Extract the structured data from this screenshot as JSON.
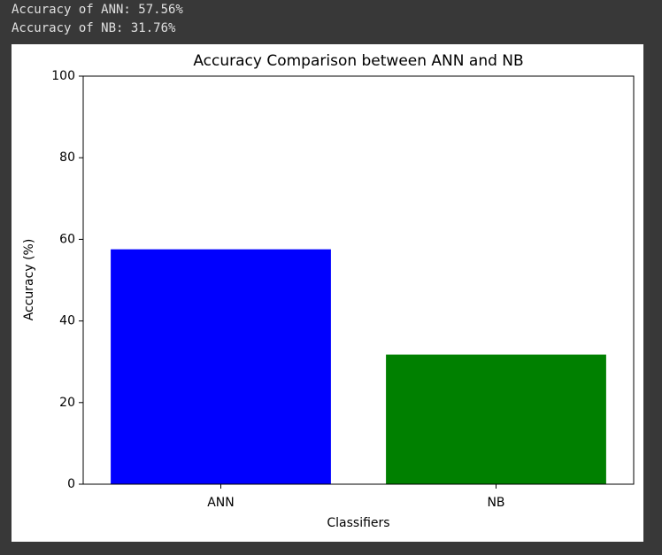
{
  "output": [
    "Accuracy of ANN: 57.56%",
    "Accuracy of NB: 31.76%"
  ],
  "chart_data": {
    "type": "bar",
    "title": "Accuracy Comparison between ANN and NB",
    "x_label": "Classifiers",
    "y_label": "Accuracy (%)",
    "categories": [
      "ANN",
      "NB"
    ],
    "values": [
      57.56,
      31.76
    ],
    "colors": [
      "#0000ff",
      "#008000"
    ],
    "ylim": [
      0,
      100
    ],
    "yticks": [
      0,
      20,
      40,
      60,
      80,
      100
    ],
    "grid": false
  }
}
